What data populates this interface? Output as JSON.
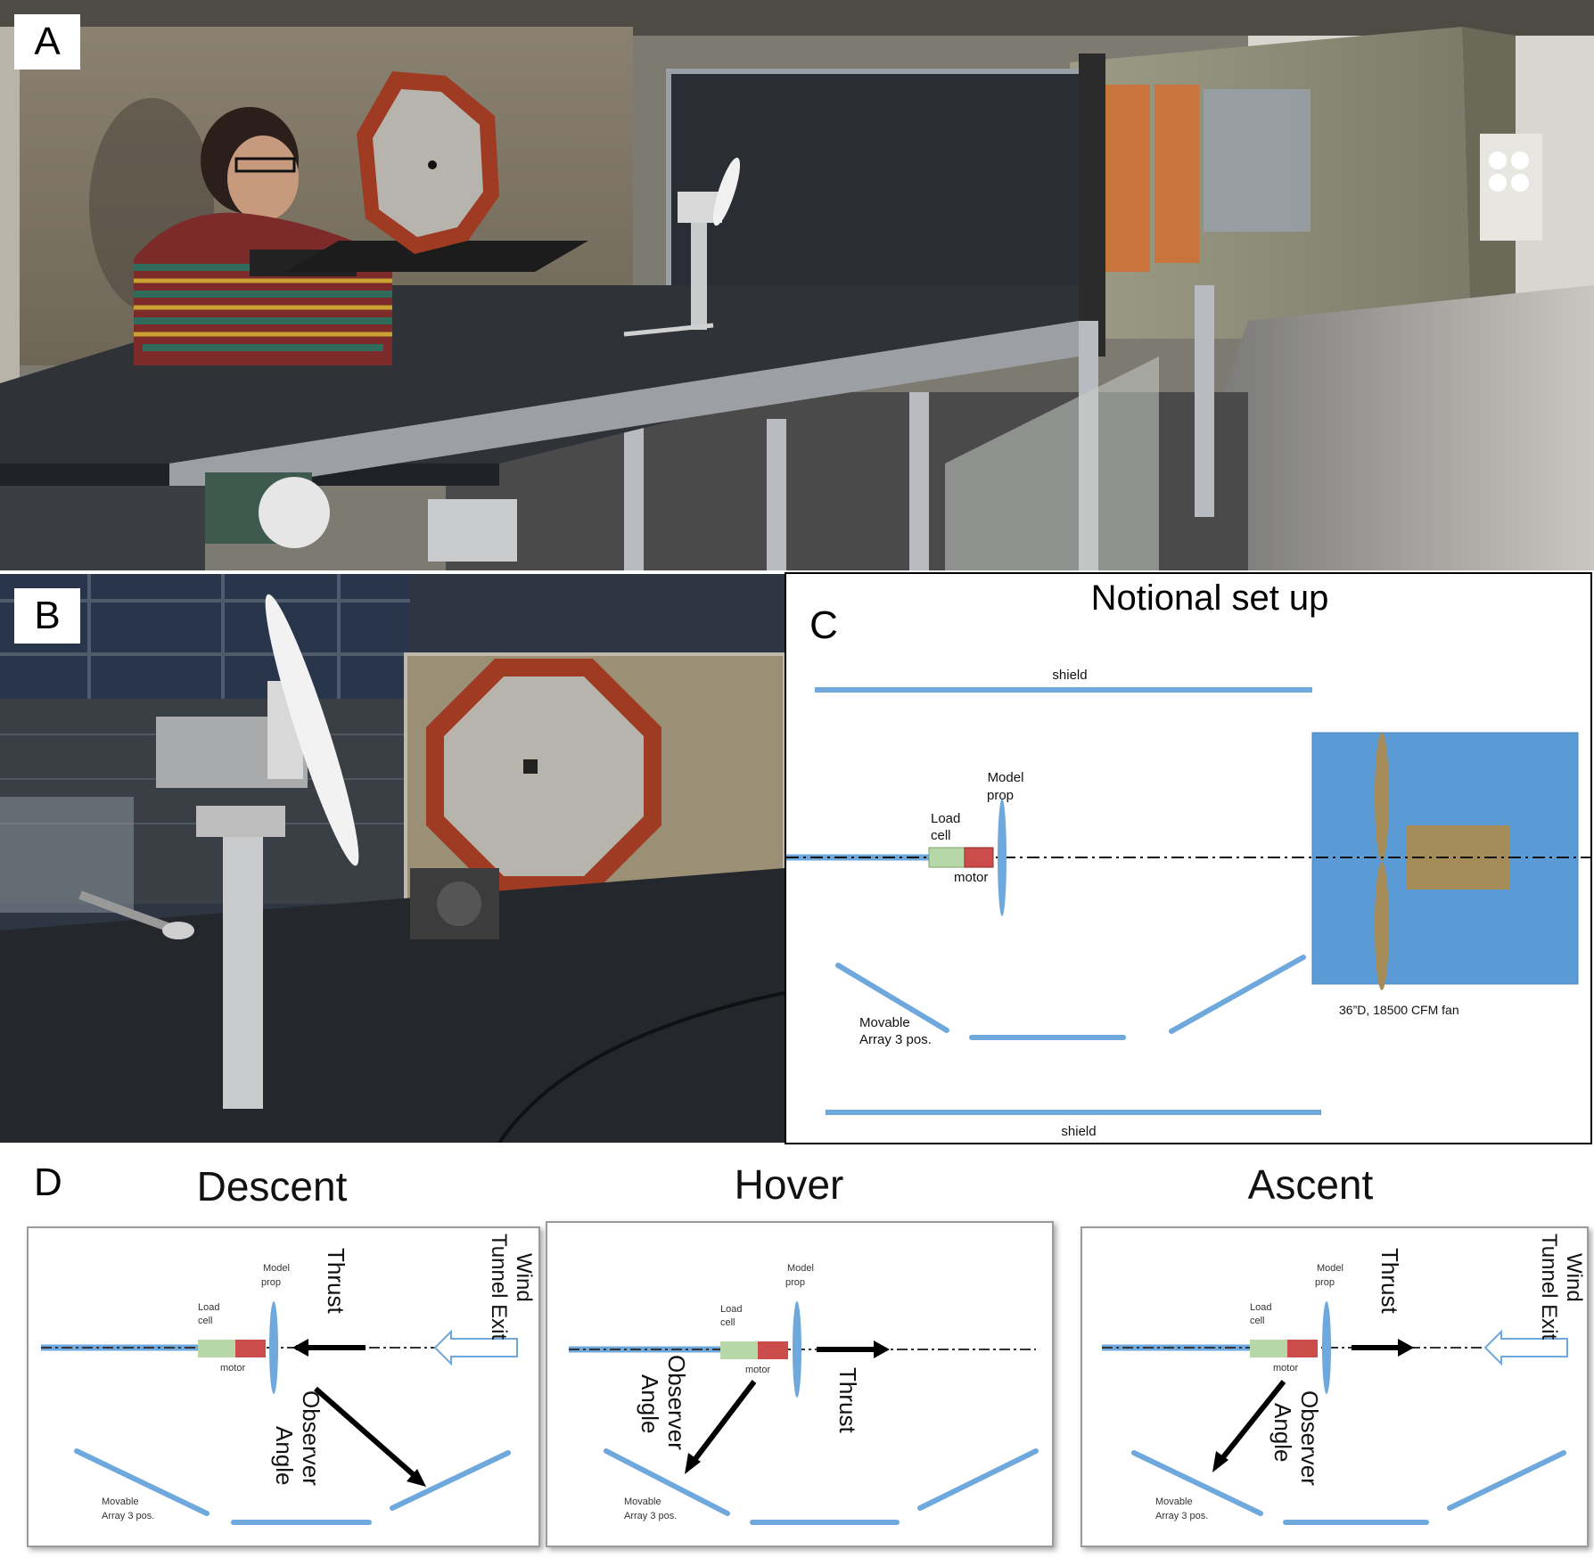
{
  "panels": {
    "a": {
      "letter": "A"
    },
    "b": {
      "letter": "B"
    },
    "c": {
      "letter": "C",
      "title": "Notional set up",
      "shield_top": "shield",
      "shield_bottom": "shield",
      "model_prop": [
        "Model",
        "prop"
      ],
      "load_cell": [
        "Load",
        "cell"
      ],
      "motor": "motor",
      "fan_label": "36”D, 18500 CFM fan",
      "array_label": [
        "Movable",
        "Array 3 pos."
      ]
    },
    "d": {
      "letter": "D",
      "modes": [
        {
          "title": "Descent"
        },
        {
          "title": "Hover"
        },
        {
          "title": "Ascent"
        }
      ],
      "thrust": "Thrust",
      "observer_angle": [
        "Observer",
        "Angle"
      ],
      "wind_tunnel_exit": [
        "Wind",
        "Tunnel Exit"
      ],
      "model_prop": [
        "Model",
        "prop"
      ],
      "load_cell": [
        "Load",
        "cell"
      ],
      "motor": "motor",
      "array_label": [
        "Movable",
        "Array 3 pos."
      ]
    }
  },
  "colors": {
    "blue_bar": "#6fa8dc",
    "load_cell": "#b6d7a8",
    "motor": "#cc4b4b",
    "fan_bg": "#5b9bd5",
    "fan_hub": "#a58b57",
    "table_dark": "#2f3338",
    "octagon_rim": "#9e3b22",
    "octagon_plate": "#b7b4ae"
  }
}
